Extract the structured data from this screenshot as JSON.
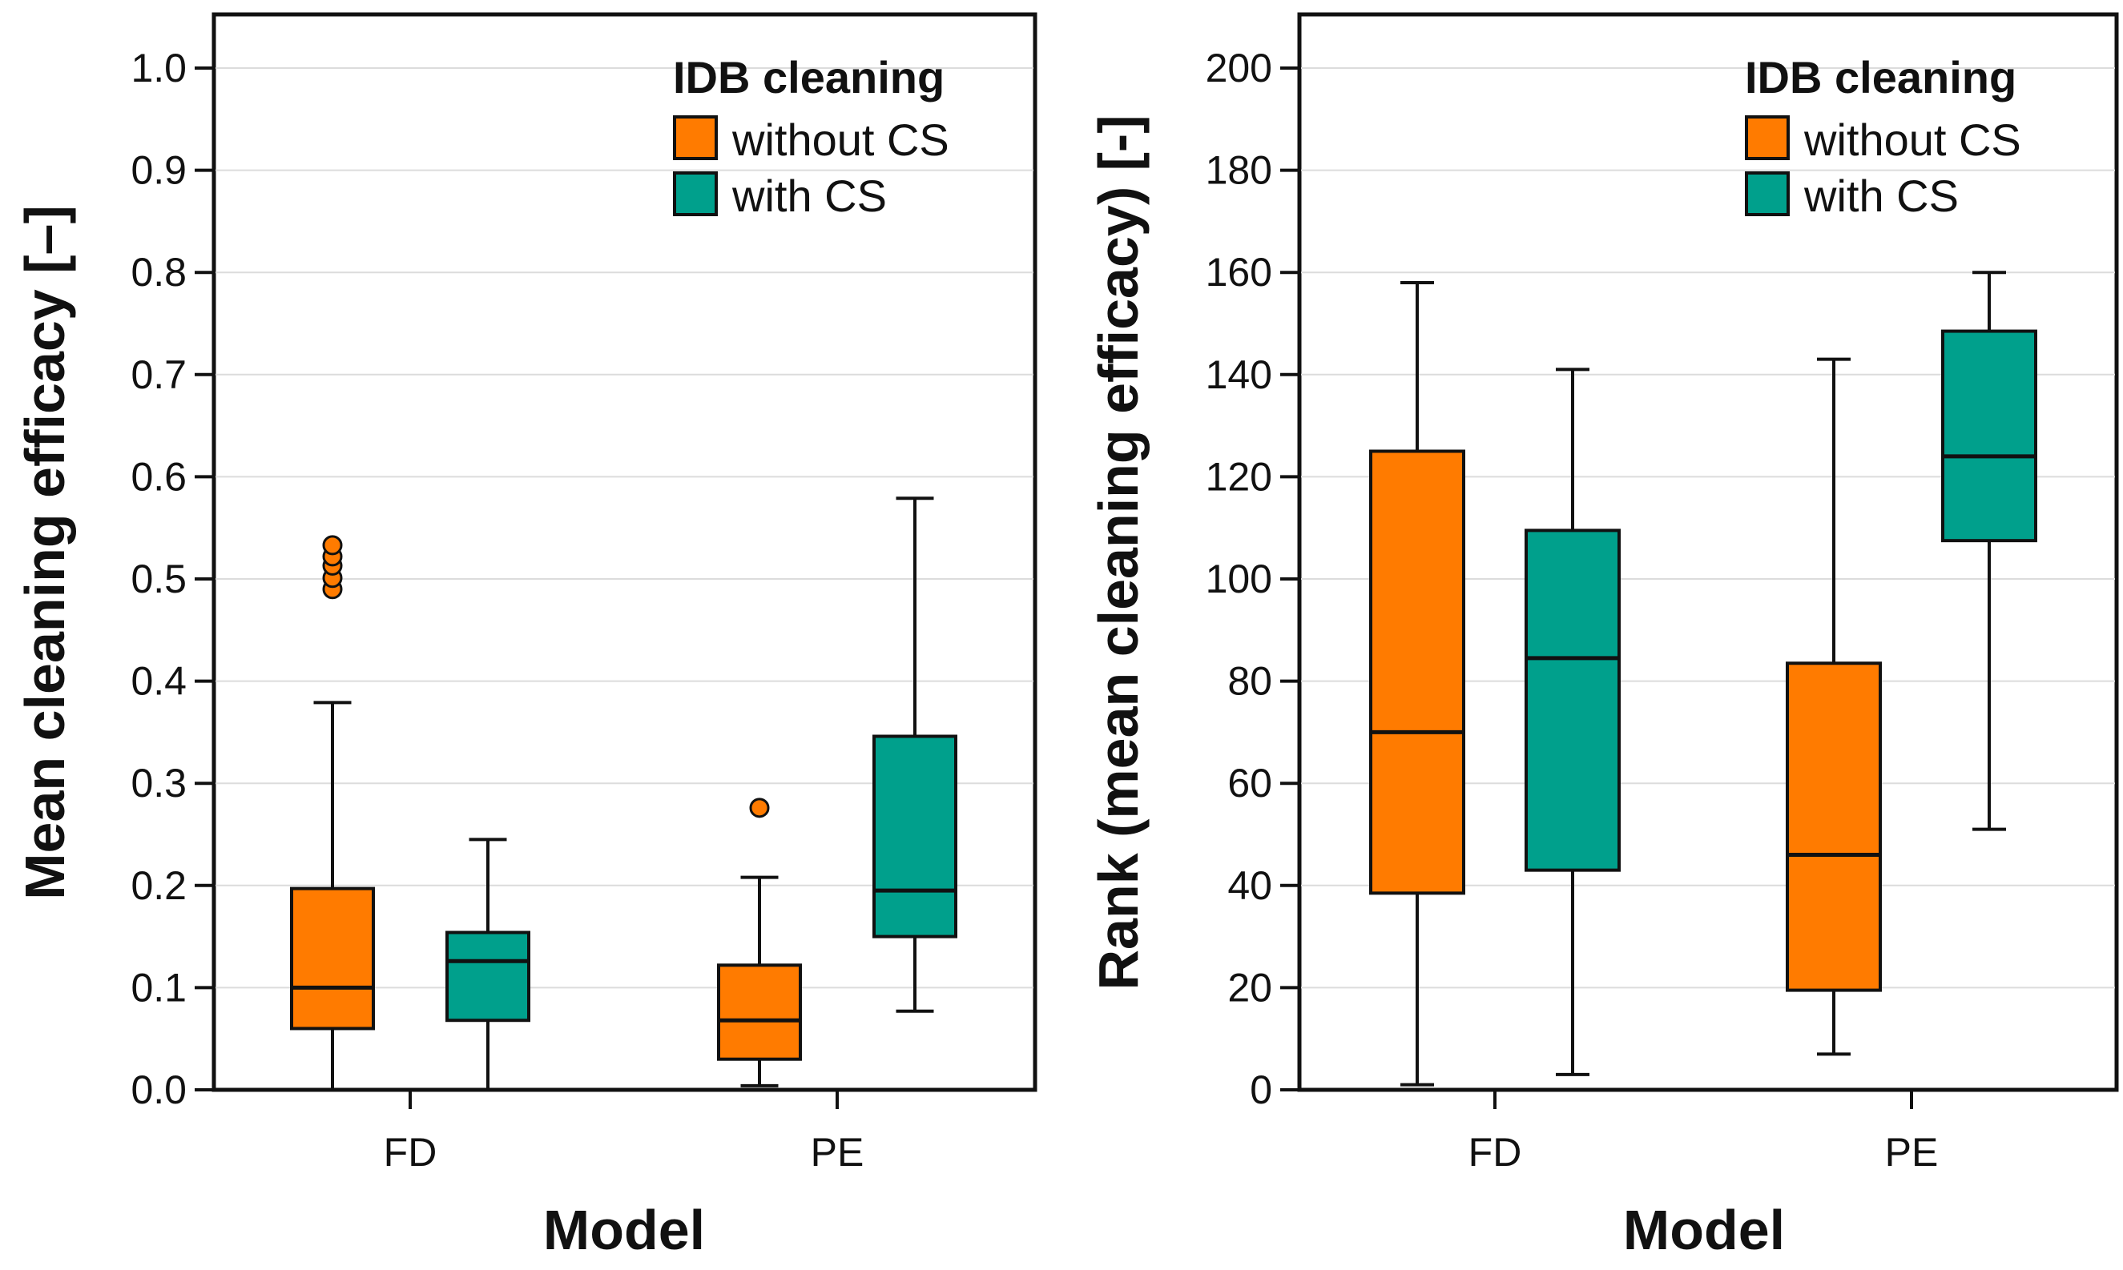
{
  "colors": {
    "without_cs": "#FF7B00",
    "with_cs": "#00A08C",
    "grid": "#DCDCDC",
    "axis": "#111111"
  },
  "chart_data": [
    {
      "type": "boxplot",
      "title": "",
      "xlabel": "Model",
      "ylabel": "Mean cleaning efficacy [–]",
      "ylim": [
        0,
        1.05
      ],
      "yticks": [
        0.0,
        0.1,
        0.2,
        0.3,
        0.4,
        0.5,
        0.6,
        0.7,
        0.8,
        0.9,
        1.0
      ],
      "ytick_labels": [
        "0.0",
        "0.1",
        "0.2",
        "0.3",
        "0.4",
        "0.5",
        "0.6",
        "0.7",
        "0.8",
        "0.9",
        "1.0"
      ],
      "categories": [
        "FD",
        "PE"
      ],
      "legend": {
        "title": "IDB cleaning",
        "position": "top-right",
        "entries": [
          {
            "label": "without CS",
            "color": "#FF7B00"
          },
          {
            "label": "with CS",
            "color": "#00A08C"
          }
        ]
      },
      "series": [
        {
          "name": "without CS",
          "color": "#FF7B00",
          "boxes": [
            {
              "category": "FD",
              "whisker_low": 0.0,
              "q1": 0.06,
              "median": 0.1,
              "q3": 0.197,
              "whisker_high": 0.379,
              "outliers": [
                0.49,
                0.501,
                0.513,
                0.522,
                0.533
              ]
            },
            {
              "category": "PE",
              "whisker_low": 0.004,
              "q1": 0.03,
              "median": 0.068,
              "q3": 0.122,
              "whisker_high": 0.208,
              "outliers": [
                0.276
              ]
            }
          ]
        },
        {
          "name": "with CS",
          "color": "#00A08C",
          "boxes": [
            {
              "category": "FD",
              "whisker_low": 0.0,
              "q1": 0.068,
              "median": 0.126,
              "q3": 0.154,
              "whisker_high": 0.245,
              "outliers": []
            },
            {
              "category": "PE",
              "whisker_low": 0.077,
              "q1": 0.15,
              "median": 0.195,
              "q3": 0.346,
              "whisker_high": 0.579,
              "outliers": []
            }
          ]
        }
      ]
    },
    {
      "type": "boxplot",
      "title": "",
      "xlabel": "Model",
      "ylabel": "Rank (mean cleaning efficacy) [-]",
      "ylim": [
        0,
        210
      ],
      "yticks": [
        0,
        20,
        40,
        60,
        80,
        100,
        120,
        140,
        160,
        180,
        200
      ],
      "ytick_labels": [
        "0",
        "20",
        "40",
        "60",
        "80",
        "100",
        "120",
        "140",
        "160",
        "180",
        "200"
      ],
      "categories": [
        "FD",
        "PE"
      ],
      "legend": {
        "title": "IDB cleaning",
        "position": "top-right",
        "entries": [
          {
            "label": "without CS",
            "color": "#FF7B00"
          },
          {
            "label": "with CS",
            "color": "#00A08C"
          }
        ]
      },
      "series": [
        {
          "name": "without CS",
          "color": "#FF7B00",
          "boxes": [
            {
              "category": "FD",
              "whisker_low": 1,
              "q1": 38.5,
              "median": 70,
              "q3": 125,
              "whisker_high": 158,
              "outliers": []
            },
            {
              "category": "PE",
              "whisker_low": 7,
              "q1": 19.5,
              "median": 46,
              "q3": 83.5,
              "whisker_high": 143,
              "outliers": []
            }
          ]
        },
        {
          "name": "with CS",
          "color": "#00A08C",
          "boxes": [
            {
              "category": "FD",
              "whisker_low": 3,
              "q1": 43,
              "median": 84.5,
              "q3": 109.5,
              "whisker_high": 141,
              "outliers": []
            },
            {
              "category": "PE",
              "whisker_low": 51,
              "q1": 107.5,
              "median": 124,
              "q3": 148.5,
              "whisker_high": 160,
              "outliers": []
            }
          ]
        }
      ]
    }
  ]
}
